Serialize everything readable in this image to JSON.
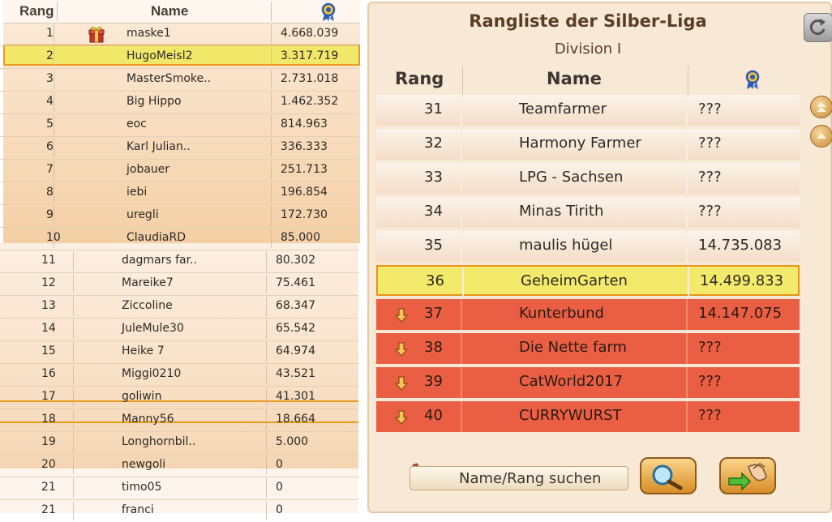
{
  "left_table": {
    "headers": {
      "rank": "Rang",
      "name": "Name"
    },
    "rows": [
      {
        "rank": "1",
        "name": "maske1",
        "score": "4.668.039",
        "gift": true
      },
      {
        "rank": "2",
        "name": "HugoMeisl2",
        "score": "3.317.719",
        "gift": false
      },
      {
        "rank": "3",
        "name": "MasterSmoke..",
        "score": "2.731.018",
        "gift": false
      },
      {
        "rank": "4",
        "name": "Big Hippo",
        "score": "1.462.352",
        "gift": false
      },
      {
        "rank": "5",
        "name": "eoc",
        "score": "814.963",
        "gift": false
      },
      {
        "rank": "6",
        "name": "Karl Julian..",
        "score": "336.333",
        "gift": false
      },
      {
        "rank": "7",
        "name": "jobauer",
        "score": "251.713",
        "gift": false
      },
      {
        "rank": "8",
        "name": "iebi",
        "score": "196.854",
        "gift": false
      },
      {
        "rank": "9",
        "name": "uregli",
        "score": "172.730",
        "gift": false
      },
      {
        "rank": "10",
        "name": "ClaudiaRD",
        "score": "85.000",
        "gift": false
      },
      {
        "rank": "11",
        "name": "dagmars far..",
        "score": "80.302",
        "gift": false
      },
      {
        "rank": "12",
        "name": "Mareike7",
        "score": "75.461",
        "gift": false
      },
      {
        "rank": "13",
        "name": "Ziccoline",
        "score": "68.347",
        "gift": false
      },
      {
        "rank": "14",
        "name": "JuleMule30",
        "score": "65.542",
        "gift": false
      },
      {
        "rank": "15",
        "name": "Heike 7",
        "score": "64.974",
        "gift": false
      },
      {
        "rank": "16",
        "name": "Miggi0210",
        "score": "43.521",
        "gift": false
      },
      {
        "rank": "17",
        "name": "goliwin",
        "score": "41.301",
        "gift": false
      },
      {
        "rank": "18",
        "name": "Manny56",
        "score": "18.664",
        "gift": false
      },
      {
        "rank": "19",
        "name": "Longhornbil..",
        "score": "5.000",
        "gift": false
      },
      {
        "rank": "20",
        "name": "newgoli",
        "score": "0",
        "gift": false
      },
      {
        "rank": "21",
        "name": "timo05",
        "score": "0",
        "gift": false
      },
      {
        "rank": "21",
        "name": "franci",
        "score": "0",
        "gift": false
      }
    ]
  },
  "league": {
    "title": "Rangliste der Silber-Liga",
    "division": "Division I",
    "headers": {
      "rank": "Rang",
      "name": "Name"
    },
    "rows": [
      {
        "rank": "31",
        "name": "Teamfarmer",
        "score": "???",
        "state": "normal"
      },
      {
        "rank": "32",
        "name": "Harmony Farmer",
        "score": "???",
        "state": "normal"
      },
      {
        "rank": "33",
        "name": "LPG - Sachsen",
        "score": "???",
        "state": "normal"
      },
      {
        "rank": "34",
        "name": "Minas Tirith",
        "score": "???",
        "state": "normal"
      },
      {
        "rank": "35",
        "name": "maulis hügel",
        "score": "14.735.083",
        "state": "normal"
      },
      {
        "rank": "36",
        "name": "GeheimGarten",
        "score": "14.499.833",
        "state": "highlight"
      },
      {
        "rank": "37",
        "name": "Kunterbund",
        "score": "14.147.075",
        "state": "relegation"
      },
      {
        "rank": "38",
        "name": "Die Nette farm",
        "score": "???",
        "state": "relegation"
      },
      {
        "rank": "39",
        "name": "CatWorld2017",
        "score": "???",
        "state": "relegation"
      },
      {
        "rank": "40",
        "name": "CURRYWURST",
        "score": "???",
        "state": "relegation"
      }
    ],
    "search_placeholder": "Name/Rang suchen"
  },
  "colors": {
    "highlight": "#f3ea6b",
    "highlight_border": "#e6921b",
    "relegation": "#ea5f43"
  },
  "icons": {
    "header_score": "medal-icon",
    "gift": "gift-icon",
    "relegation": "down-arrow-icon",
    "reload": "reload-icon",
    "search": "magnifier-icon",
    "pencil": "pencil-icon",
    "switch": "switch-league-icon"
  }
}
